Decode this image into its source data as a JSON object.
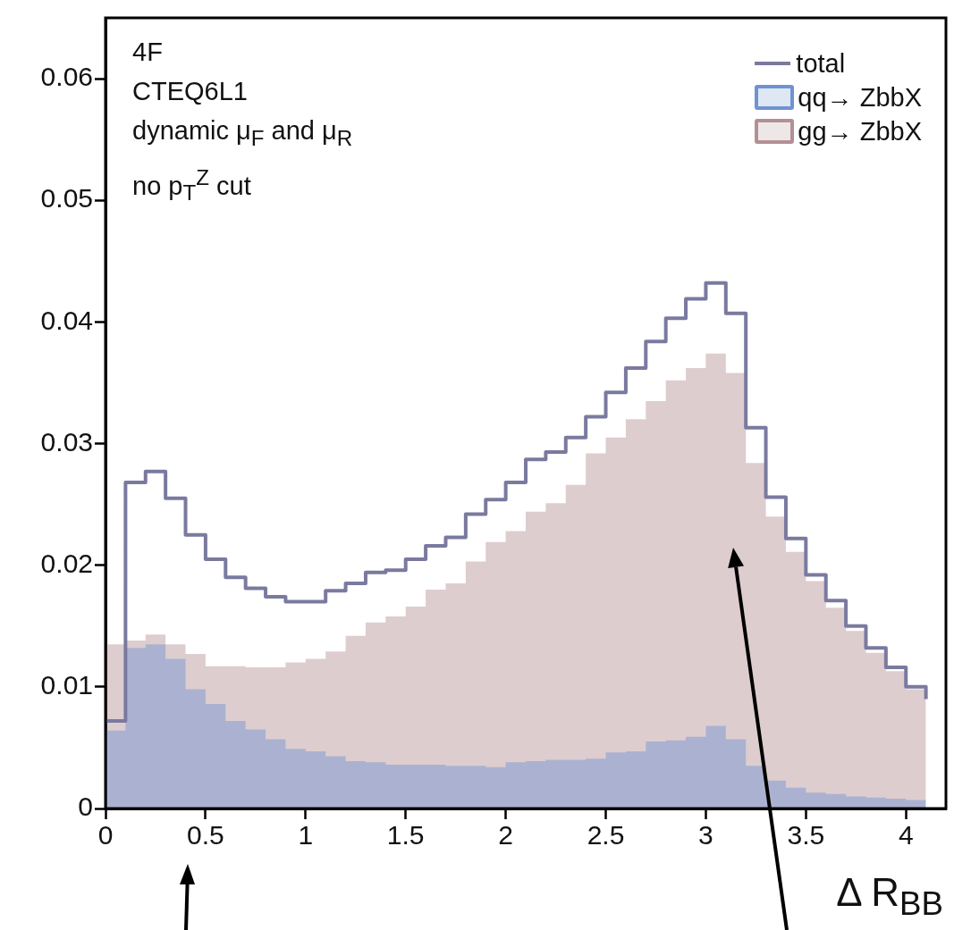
{
  "chart_data": {
    "type": "step",
    "xlabel": "Δ R$_{BB}$",
    "annotations": [
      "4F",
      "CTEQ6L1",
      "dynamic μ$_{F}$ and μ$_{R}$",
      "no p$_{T}$$^{Z}$ cut"
    ],
    "x": [
      0,
      0.1,
      0.2,
      0.3,
      0.4,
      0.5,
      0.6,
      0.7,
      0.8,
      0.9,
      1,
      1.1,
      1.2,
      1.3,
      1.4,
      1.5,
      1.6,
      1.7,
      1.8,
      1.9,
      2,
      2.1,
      2.2,
      2.3,
      2.4,
      2.5,
      2.6,
      2.7,
      2.8,
      2.9,
      3,
      3.1,
      3.2,
      3.3,
      3.4,
      3.5,
      3.6,
      3.7,
      3.8,
      3.9,
      4,
      4.1
    ],
    "series": [
      {
        "name": "total",
        "color": "#7a7aa0",
        "values": [
          0.0072,
          0.0268,
          0.0277,
          0.0255,
          0.0225,
          0.0205,
          0.019,
          0.0181,
          0.0174,
          0.017,
          0.017,
          0.0179,
          0.0185,
          0.0194,
          0.0196,
          0.0205,
          0.0216,
          0.0223,
          0.0242,
          0.0254,
          0.0268,
          0.0287,
          0.0293,
          0.0305,
          0.0322,
          0.0342,
          0.0362,
          0.0384,
          0.0403,
          0.0419,
          0.0432,
          0.0407,
          0.0313,
          0.0256,
          0.0222,
          0.0192,
          0.0171,
          0.015,
          0.0132,
          0.0116,
          0.01,
          0.009
        ]
      },
      {
        "name": "qq→ ZbbX",
        "type": "area",
        "color": "#6f93d2",
        "values": [
          0.0064,
          0.0132,
          0.0135,
          0.0123,
          0.0098,
          0.0086,
          0.0072,
          0.0065,
          0.0057,
          0.0049,
          0.0047,
          0.0043,
          0.0039,
          0.0038,
          0.0036,
          0.0036,
          0.0036,
          0.0035,
          0.0035,
          0.0034,
          0.0038,
          0.0039,
          0.004,
          0.004,
          0.0041,
          0.0046,
          0.0047,
          0.0055,
          0.0056,
          0.0059,
          0.0068,
          0.0057,
          0.0035,
          0.0023,
          0.0017,
          0.0013,
          0.0012,
          0.001,
          0.0009,
          0.0008,
          0.0007,
          0.0007
        ]
      },
      {
        "name": "gg→ ZbbX",
        "type": "area",
        "color": "#b39095",
        "values": [
          0.0135,
          0.0138,
          0.0143,
          0.0135,
          0.0127,
          0.0117,
          0.0117,
          0.0116,
          0.0116,
          0.012,
          0.0123,
          0.0129,
          0.0142,
          0.0153,
          0.0158,
          0.0166,
          0.018,
          0.0185,
          0.0203,
          0.0219,
          0.0228,
          0.0244,
          0.0251,
          0.0266,
          0.0292,
          0.0305,
          0.032,
          0.0335,
          0.0352,
          0.0362,
          0.0374,
          0.0358,
          0.0284,
          0.024,
          0.0211,
          0.0187,
          0.0165,
          0.0146,
          0.0128,
          0.0113,
          0.0098,
          0.0088
        ]
      }
    ],
    "xlim": [
      0,
      4.2
    ],
    "xticks": [
      0,
      0.5,
      1,
      1.5,
      2,
      2.5,
      3,
      3.5,
      4
    ],
    "ylim": [
      0,
      0.065
    ],
    "yticks": [
      0,
      0.01,
      0.02,
      0.03,
      0.04,
      0.05,
      0.06
    ],
    "grid": false,
    "legend": "top right"
  }
}
